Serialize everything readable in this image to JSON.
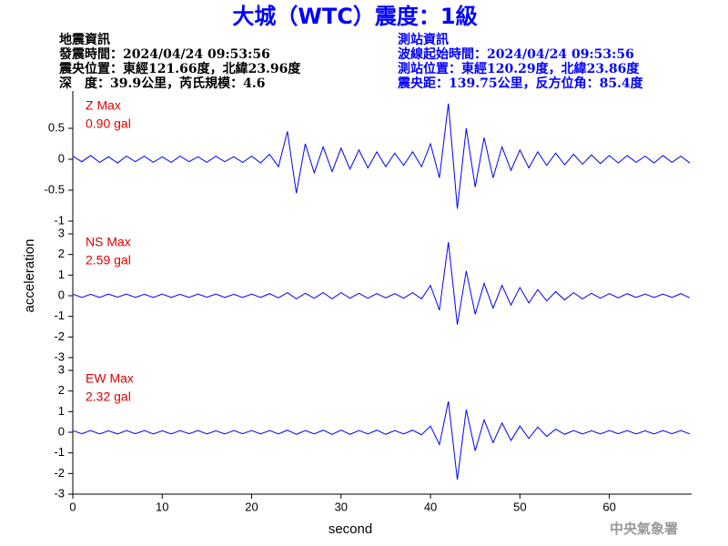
{
  "chart_data": {
    "type": "line",
    "title": "大城（WTC）震度：1級",
    "event_info": [
      "地震資訊",
      "發震時間：2024/04/24 09:53:56",
      "震央位置：東經121.66度，北緯23.96度",
      "深　度：39.9公里，芮氏規模：4.6"
    ],
    "station_info": [
      "測站資訊",
      "波線起始時間：2024/04/24 09:53:56",
      "測站位置：東經120.29度，北緯23.86度",
      "震央距：139.75公里，反方位角：85.4度"
    ],
    "xlabel": "second",
    "ylabel": "acceleration",
    "footer": "中央氣象署",
    "xlim": [
      0,
      69.2
    ],
    "xticks": [
      0,
      10,
      20,
      30,
      40,
      50,
      60
    ],
    "color": "#0000ff",
    "label_color": "#e00000",
    "x": [
      0,
      1,
      2,
      3,
      4,
      5,
      6,
      7,
      8,
      9,
      10,
      11,
      12,
      13,
      14,
      15,
      16,
      17,
      18,
      19,
      20,
      21,
      22,
      23,
      24,
      25,
      26,
      27,
      28,
      29,
      30,
      31,
      32,
      33,
      34,
      35,
      36,
      37,
      38,
      39,
      40,
      41,
      42,
      43,
      44,
      45,
      46,
      47,
      48,
      49,
      50,
      51,
      52,
      53,
      54,
      55,
      56,
      57,
      58,
      59,
      60,
      61,
      62,
      63,
      64,
      65,
      66,
      67,
      68,
      69
    ],
    "panels": [
      {
        "name": "Z Max",
        "max_label": "0.90 gal",
        "ylim": [
          -1,
          1
        ],
        "yticks": [
          -1,
          -0.5,
          0,
          0.5
        ],
        "values": [
          0.05,
          -0.04,
          0.06,
          -0.05,
          0.04,
          -0.06,
          0.05,
          -0.04,
          0.05,
          -0.05,
          0.04,
          -0.05,
          0.05,
          -0.04,
          0.04,
          -0.05,
          0.05,
          -0.04,
          0.04,
          -0.05,
          0.05,
          -0.06,
          0.08,
          -0.12,
          0.45,
          -0.55,
          0.25,
          -0.22,
          0.2,
          -0.2,
          0.18,
          -0.16,
          0.15,
          -0.14,
          0.12,
          -0.12,
          0.1,
          -0.1,
          0.12,
          -0.12,
          0.25,
          -0.3,
          0.9,
          -0.8,
          0.5,
          -0.45,
          0.35,
          -0.3,
          0.2,
          -0.18,
          0.15,
          -0.14,
          0.12,
          -0.1,
          0.1,
          -0.09,
          0.08,
          -0.08,
          0.07,
          -0.07,
          0.06,
          -0.06,
          0.06,
          -0.05,
          0.05,
          -0.06,
          0.06,
          -0.05,
          0.05,
          -0.06
        ]
      },
      {
        "name": "NS Max",
        "max_label": "2.59 gal",
        "ylim": [
          -3,
          3
        ],
        "yticks": [
          -3,
          -2,
          -1,
          0,
          1,
          2,
          3
        ],
        "values": [
          0.08,
          -0.08,
          0.07,
          -0.08,
          0.08,
          -0.07,
          0.08,
          -0.08,
          0.07,
          -0.08,
          0.08,
          -0.08,
          0.07,
          -0.08,
          0.08,
          -0.07,
          0.08,
          -0.08,
          0.07,
          -0.08,
          0.08,
          -0.08,
          0.1,
          -0.1,
          0.15,
          -0.15,
          0.12,
          -0.12,
          0.15,
          -0.15,
          0.15,
          -0.12,
          0.12,
          -0.12,
          0.1,
          -0.1,
          0.1,
          -0.12,
          0.15,
          -0.15,
          0.5,
          -0.7,
          2.6,
          -1.4,
          1.2,
          -0.9,
          0.6,
          -0.6,
          0.5,
          -0.45,
          0.4,
          -0.35,
          0.3,
          -0.25,
          0.2,
          -0.2,
          0.15,
          -0.15,
          0.12,
          -0.12,
          0.1,
          -0.1,
          0.1,
          -0.08,
          0.08,
          -0.08,
          0.08,
          -0.08,
          0.1,
          -0.1
        ]
      },
      {
        "name": "EW Max",
        "max_label": "2.32 gal",
        "ylim": [
          -3,
          3
        ],
        "yticks": [
          -3,
          -2,
          -1,
          0,
          1,
          2,
          3
        ],
        "values": [
          0.08,
          -0.07,
          0.08,
          -0.08,
          0.07,
          -0.08,
          0.08,
          -0.07,
          0.08,
          -0.08,
          0.07,
          -0.08,
          0.08,
          -0.07,
          0.08,
          -0.08,
          0.07,
          -0.08,
          0.08,
          -0.07,
          0.08,
          -0.08,
          0.08,
          -0.08,
          0.1,
          -0.1,
          0.08,
          -0.08,
          0.1,
          -0.1,
          0.1,
          -0.1,
          0.08,
          -0.08,
          0.1,
          -0.1,
          0.08,
          -0.08,
          0.1,
          -0.12,
          0.3,
          -0.6,
          1.5,
          -2.3,
          1.1,
          -0.9,
          0.6,
          -0.5,
          0.45,
          -0.4,
          0.3,
          -0.3,
          0.25,
          -0.2,
          0.15,
          -0.1,
          0.08,
          -0.08,
          0.07,
          -0.08,
          0.08,
          -0.07,
          0.08,
          -0.08,
          0.07,
          -0.08,
          0.08,
          -0.07,
          0.08,
          -0.08
        ]
      }
    ]
  }
}
